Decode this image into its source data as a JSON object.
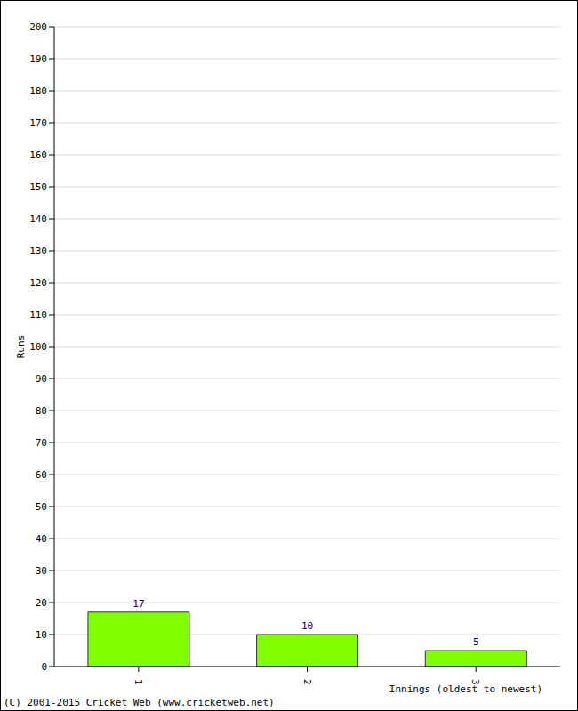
{
  "chart_data": {
    "type": "bar",
    "categories": [
      "1",
      "2",
      "3"
    ],
    "values": [
      17,
      10,
      5
    ],
    "color": "#80ff00",
    "ylim": [
      0,
      200
    ],
    "yticks": [
      0,
      10,
      20,
      30,
      40,
      50,
      60,
      70,
      80,
      90,
      100,
      110,
      120,
      130,
      140,
      150,
      160,
      170,
      180,
      190,
      200
    ],
    "y_label": "Runs",
    "x_label": "Innings (oldest to newest)",
    "annotation": "(C) 2001-2015 Cricket Web (www.cricketweb.net)",
    "grid": true,
    "data_labels": true
  }
}
